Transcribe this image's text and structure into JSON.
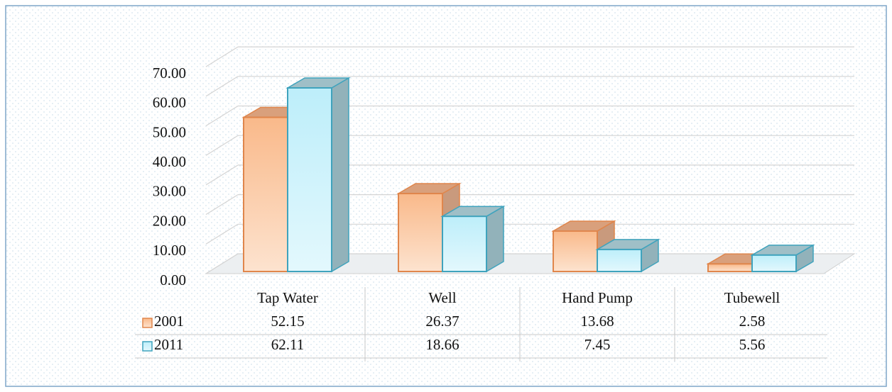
{
  "chart_data": {
    "type": "bar3d",
    "categories": [
      "Tap Water",
      "Well",
      "Hand Pump",
      "Tubewell"
    ],
    "series": [
      {
        "name": "2001",
        "color": "#f9b98a",
        "values": [
          52.15,
          26.37,
          13.68,
          2.58
        ]
      },
      {
        "name": "2011",
        "color": "#bdeefa",
        "values": [
          62.11,
          18.66,
          7.45,
          5.56
        ]
      }
    ],
    "ylim": [
      0,
      70
    ],
    "yticks": [
      {
        "value": 0,
        "label": "0.00"
      },
      {
        "value": 10,
        "label": "10.00"
      },
      {
        "value": 20,
        "label": "20.00"
      },
      {
        "value": 30,
        "label": "30.00"
      },
      {
        "value": 40,
        "label": "40.00"
      },
      {
        "value": 50,
        "label": "50.00"
      },
      {
        "value": 60,
        "label": "60.00"
      },
      {
        "value": 70,
        "label": "70.00"
      }
    ],
    "grid": true,
    "data_table": true
  }
}
